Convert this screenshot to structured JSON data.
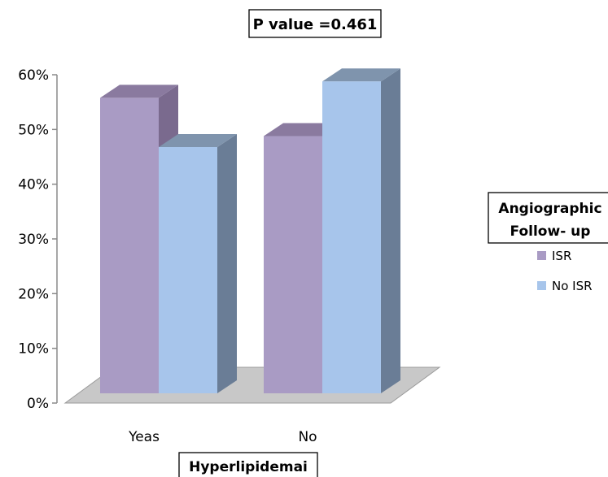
{
  "chart_data": {
    "type": "bar",
    "title": "P value =0.461",
    "categories": [
      "Yeas",
      "No"
    ],
    "xlabel": "Hyperlipidemai",
    "ylabel": "",
    "ylim": [
      0,
      60
    ],
    "yticks": [
      "0%",
      "10%",
      "20%",
      "30%",
      "40%",
      "50%",
      "60%"
    ],
    "legend_title": "Angiographic Follow- up",
    "legend_title_lines": [
      "Angiographic",
      "Follow- up"
    ],
    "legend_position": "right",
    "grid": false,
    "style": "3d-column",
    "series": [
      {
        "name": "ISR",
        "values": [
          54,
          47
        ],
        "color": "#a99bc4"
      },
      {
        "name": "No ISR",
        "values": [
          45,
          57
        ],
        "color": "#a7c5eb"
      }
    ]
  },
  "colors": {
    "isr_side": "#7a6a8e",
    "isr_top": "#8a7a9f",
    "noisr_side": "#6a7d96",
    "noisr_top": "#7f94ad",
    "floor": "#c8c8c8",
    "axis": "#8a8a8a"
  }
}
